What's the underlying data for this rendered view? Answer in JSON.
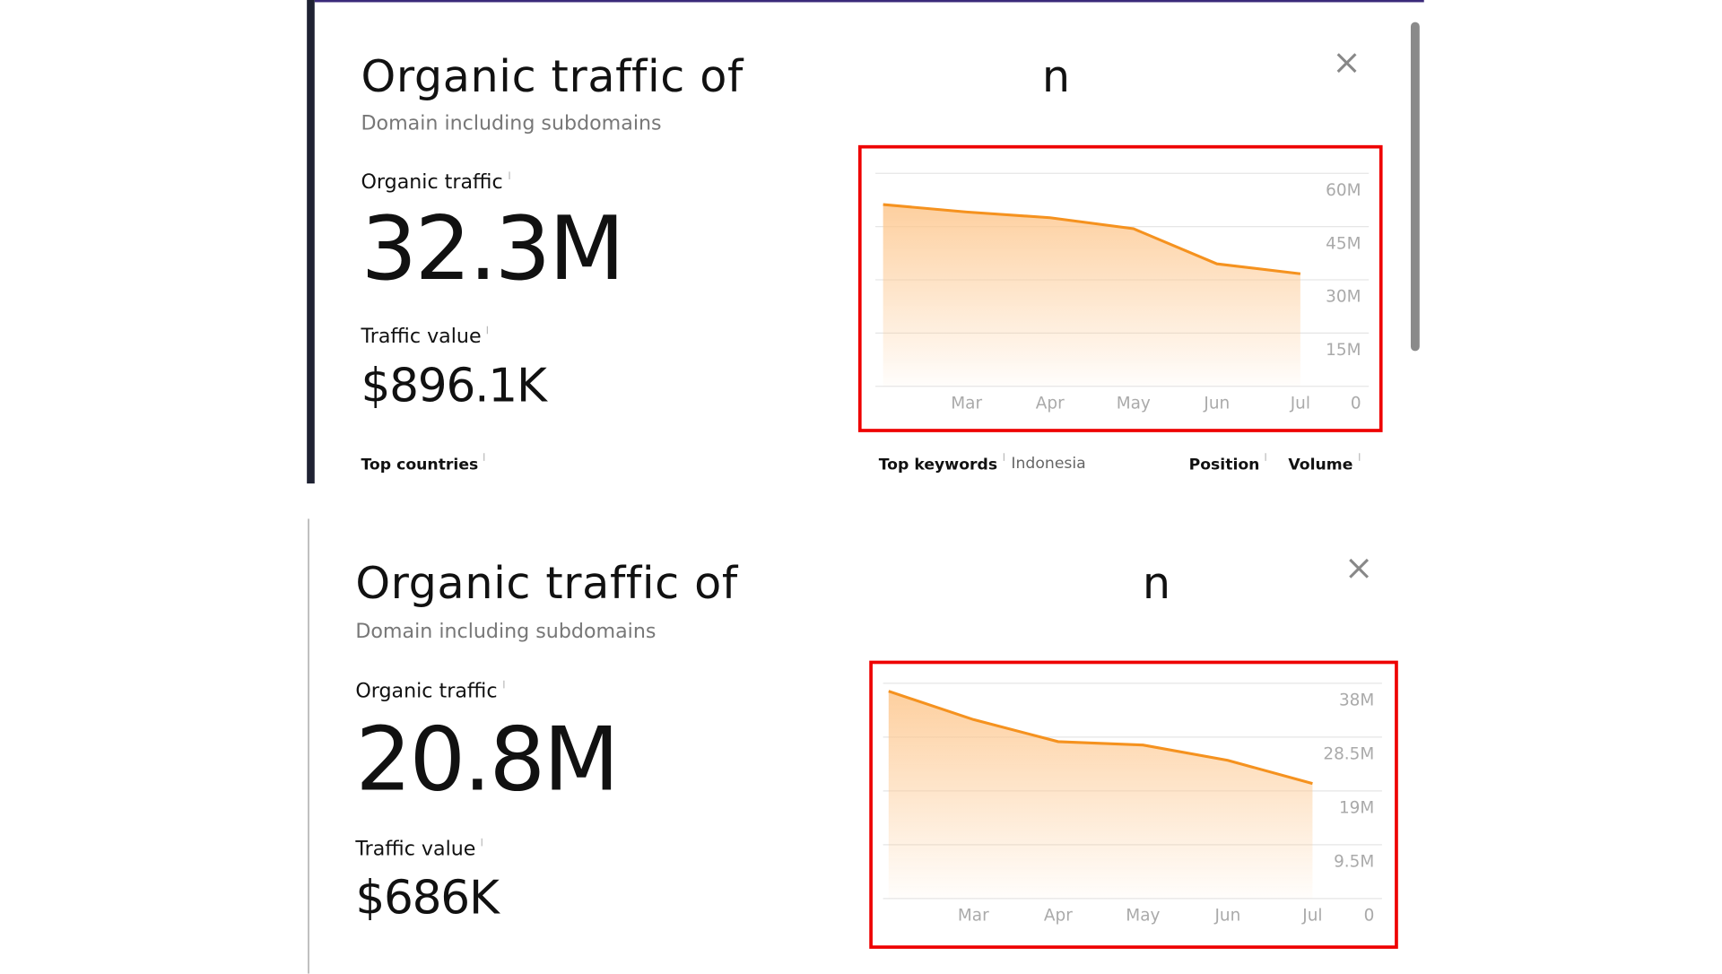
{
  "panels": [
    {
      "title": "Organic traffic of",
      "title_fragment": "n",
      "subtitle": "Domain including subdomains",
      "traffic_label": "Organic traffic",
      "traffic": "32.3M",
      "value_label": "Traffic value",
      "value": "$896.1K",
      "footer": [
        "Top countries",
        "Top keywords",
        "Indonesia",
        "Position",
        "Volume"
      ],
      "chart": {
        "type": "line",
        "categories": [
          null,
          "Mar",
          "Apr",
          "May",
          "Jun",
          "Jul"
        ],
        "values": [
          51200000,
          49100000,
          47500000,
          44400000,
          34500000,
          31700000
        ],
        "color": "#f5921f",
        "ylim": [
          0,
          60000000
        ],
        "yticks": [
          0,
          {
            "value": 15000000,
            "label": "15M"
          },
          {
            "value": 30000000,
            "label": "30M"
          },
          {
            "value": 45000000,
            "label": "45M"
          },
          {
            "value": 60000000,
            "label": "60M"
          }
        ],
        "grid": true
      }
    },
    {
      "title": "Organic traffic of",
      "title_fragment": "n",
      "subtitle": "Domain including subdomains",
      "traffic_label": "Organic traffic",
      "traffic": "20.8M",
      "value_label": "Traffic value",
      "value": "$686K",
      "footer": [],
      "chart": {
        "type": "line",
        "categories": [
          null,
          "Mar",
          "Apr",
          "May",
          "Jun",
          "Jul"
        ],
        "values": [
          36600000,
          31600000,
          27700000,
          27100000,
          24400000,
          20300000
        ],
        "color": "#f5921f",
        "ylim": [
          0,
          38000000
        ],
        "yticks": [
          0,
          {
            "value": 9500000,
            "label": "9.5M"
          },
          {
            "value": 19000000,
            "label": "19M"
          },
          {
            "value": 28500000,
            "label": "28.5M"
          },
          {
            "value": 38000000,
            "label": "38M"
          }
        ],
        "grid": true
      }
    }
  ]
}
